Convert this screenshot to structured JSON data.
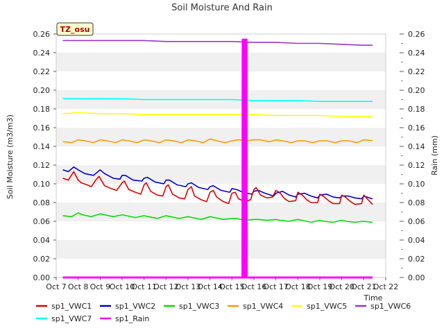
{
  "chart_data": {
    "type": "line",
    "title": "Soil Moisture And Rain",
    "site_label": "TZ_osu",
    "xlabel": "Time",
    "ylabel": "Soil Moisture (m3/m3)",
    "ylabel_right": "Rain (mm)",
    "x_ticks": [
      "Oct 7",
      "Oct 8",
      "Oct 9",
      "Oct 10",
      "Oct 11",
      "Oct 12",
      "Oct 13",
      "Oct 14",
      "Oct 15",
      "Oct 16",
      "Oct 17",
      "Oct 18",
      "Oct 19",
      "Oct 20",
      "Oct 21",
      "Oct 22"
    ],
    "xlim_days": [
      7,
      22
    ],
    "ylim": [
      0,
      0.26
    ],
    "y_ticks": [
      "0.00",
      "0.02",
      "0.04",
      "0.06",
      "0.08",
      "0.10",
      "0.12",
      "0.14",
      "0.16",
      "0.18",
      "0.20",
      "0.22",
      "0.24",
      "0.26"
    ],
    "ylim_right": [
      0,
      0.26
    ],
    "y_ticks_right": [
      "0.00",
      "0.02",
      "0.04",
      "0.06",
      "0.08",
      "0.10",
      "0.12",
      "0.14",
      "0.16",
      "0.18",
      "0.20",
      "0.22",
      "0.24",
      "0.26"
    ],
    "grid": "horizontal alternating bands",
    "legend_placement": "bottom",
    "series": [
      {
        "name": "sp1_VWC1",
        "color": "#dd0000",
        "axis": "left",
        "x": [
          7.3,
          7.55,
          7.8,
          8.0,
          8.15,
          8.4,
          8.6,
          8.8,
          8.95,
          9.2,
          9.5,
          9.75,
          10.0,
          10.1,
          10.3,
          10.6,
          10.85,
          11.0,
          11.1,
          11.3,
          11.6,
          11.85,
          12.0,
          12.1,
          12.3,
          12.6,
          12.85,
          13.0,
          13.15,
          13.3,
          13.6,
          13.85,
          14.0,
          14.15,
          14.3,
          14.6,
          14.85,
          15.0,
          15.15,
          15.3,
          15.6,
          15.85,
          16.0,
          16.1,
          16.3,
          16.6,
          16.85,
          17.0,
          17.2,
          17.4,
          17.6,
          17.9,
          18.0,
          18.2,
          18.4,
          18.6,
          18.9,
          19.0,
          19.15,
          19.4,
          19.6,
          19.9,
          20.0,
          20.15,
          20.4,
          20.6,
          20.9,
          21.0,
          21.2,
          21.4
        ],
        "y": [
          0.106,
          0.104,
          0.113,
          0.104,
          0.101,
          0.099,
          0.097,
          0.104,
          0.108,
          0.098,
          0.095,
          0.093,
          0.101,
          0.103,
          0.094,
          0.091,
          0.089,
          0.099,
          0.101,
          0.092,
          0.088,
          0.087,
          0.097,
          0.099,
          0.089,
          0.085,
          0.084,
          0.094,
          0.097,
          0.087,
          0.083,
          0.081,
          0.091,
          0.093,
          0.086,
          0.081,
          0.079,
          0.09,
          0.091,
          0.084,
          0.081,
          0.083,
          0.094,
          0.096,
          0.088,
          0.085,
          0.086,
          0.093,
          0.09,
          0.084,
          0.081,
          0.082,
          0.091,
          0.088,
          0.083,
          0.08,
          0.08,
          0.089,
          0.087,
          0.082,
          0.079,
          0.079,
          0.088,
          0.086,
          0.081,
          0.078,
          0.079,
          0.088,
          0.083,
          0.078
        ]
      },
      {
        "name": "sp1_VWC2",
        "color": "#0000cc",
        "axis": "left",
        "x": [
          7.3,
          7.55,
          7.8,
          8.0,
          8.3,
          8.7,
          9.0,
          9.2,
          9.6,
          9.9,
          10.0,
          10.15,
          10.5,
          10.9,
          11.0,
          11.15,
          11.5,
          11.9,
          12.0,
          12.15,
          12.5,
          12.9,
          13.0,
          13.15,
          13.5,
          13.9,
          14.0,
          14.15,
          14.5,
          14.9,
          15.0,
          15.2,
          15.5,
          15.9,
          16.0,
          16.2,
          16.5,
          16.9,
          17.0,
          17.3,
          17.6,
          17.9,
          18.0,
          18.3,
          18.6,
          18.9,
          19.0,
          19.3,
          19.6,
          19.9,
          20.0,
          20.3,
          20.6,
          20.9,
          21.0,
          21.4
        ],
        "y": [
          0.115,
          0.113,
          0.118,
          0.115,
          0.111,
          0.109,
          0.115,
          0.111,
          0.106,
          0.105,
          0.109,
          0.109,
          0.104,
          0.103,
          0.106,
          0.107,
          0.102,
          0.1,
          0.104,
          0.104,
          0.099,
          0.097,
          0.1,
          0.101,
          0.096,
          0.094,
          0.097,
          0.098,
          0.093,
          0.091,
          0.095,
          0.094,
          0.091,
          0.089,
          0.092,
          0.093,
          0.09,
          0.087,
          0.09,
          0.092,
          0.088,
          0.086,
          0.089,
          0.09,
          0.087,
          0.085,
          0.088,
          0.089,
          0.086,
          0.085,
          0.087,
          0.087,
          0.085,
          0.084,
          0.087,
          0.084
        ]
      },
      {
        "name": "sp1_VWC3",
        "color": "#00dd00",
        "axis": "left",
        "x": [
          7.3,
          7.7,
          8.0,
          8.2,
          8.6,
          9.0,
          9.2,
          9.6,
          10.0,
          10.2,
          10.6,
          11.0,
          11.2,
          11.6,
          12.0,
          12.2,
          12.6,
          13.0,
          13.2,
          13.6,
          14.0,
          14.2,
          14.6,
          15.0,
          15.2,
          15.6,
          16.0,
          16.2,
          16.6,
          17.0,
          17.2,
          17.6,
          18.0,
          18.2,
          18.6,
          19.0,
          19.2,
          19.6,
          20.0,
          20.2,
          20.6,
          21.0,
          21.4
        ],
        "y": [
          0.066,
          0.065,
          0.069,
          0.067,
          0.065,
          0.068,
          0.067,
          0.065,
          0.067,
          0.066,
          0.064,
          0.066,
          0.065,
          0.063,
          0.066,
          0.065,
          0.063,
          0.065,
          0.064,
          0.062,
          0.065,
          0.064,
          0.062,
          0.063,
          0.063,
          0.061,
          0.062,
          0.062,
          0.061,
          0.062,
          0.061,
          0.06,
          0.062,
          0.061,
          0.059,
          0.061,
          0.06,
          0.059,
          0.061,
          0.06,
          0.059,
          0.06,
          0.059
        ]
      },
      {
        "name": "sp1_VWC4",
        "color": "#ff9900",
        "axis": "left",
        "x": [
          7.3,
          7.7,
          8.0,
          8.3,
          8.7,
          9.0,
          9.3,
          9.7,
          10.0,
          10.3,
          10.7,
          11.0,
          11.3,
          11.7,
          12.0,
          12.3,
          12.7,
          13.0,
          13.3,
          13.7,
          14.0,
          14.3,
          14.7,
          15.0,
          15.3,
          15.7,
          16.0,
          16.3,
          16.7,
          17.0,
          17.3,
          17.7,
          18.0,
          18.3,
          18.7,
          19.0,
          19.3,
          19.7,
          20.0,
          20.3,
          20.7,
          21.0,
          21.4
        ],
        "y": [
          0.145,
          0.144,
          0.147,
          0.146,
          0.144,
          0.147,
          0.146,
          0.144,
          0.147,
          0.146,
          0.144,
          0.147,
          0.146,
          0.144,
          0.147,
          0.146,
          0.144,
          0.147,
          0.146,
          0.144,
          0.148,
          0.146,
          0.144,
          0.146,
          0.147,
          0.146,
          0.147,
          0.147,
          0.145,
          0.147,
          0.146,
          0.144,
          0.146,
          0.146,
          0.144,
          0.146,
          0.146,
          0.144,
          0.146,
          0.146,
          0.144,
          0.147,
          0.146
        ]
      },
      {
        "name": "sp1_VWC5",
        "color": "#ffff00",
        "axis": "left",
        "x": [
          7.3,
          8.0,
          9.0,
          10.0,
          11.0,
          12.0,
          13.0,
          14.0,
          15.0,
          16.0,
          17.0,
          18.0,
          19.0,
          20.0,
          20.5,
          21.0,
          21.4
        ],
        "y": [
          0.175,
          0.176,
          0.175,
          0.175,
          0.174,
          0.174,
          0.174,
          0.174,
          0.174,
          0.174,
          0.173,
          0.173,
          0.173,
          0.172,
          0.172,
          0.172,
          0.172
        ]
      },
      {
        "name": "sp1_VWC6",
        "color": "#9933cc",
        "axis": "left",
        "x": [
          7.3,
          8.0,
          9.0,
          10.0,
          11.0,
          12.0,
          13.0,
          14.0,
          15.0,
          16.0,
          17.0,
          18.0,
          19.0,
          20.0,
          21.0,
          21.4
        ],
        "y": [
          0.253,
          0.253,
          0.253,
          0.253,
          0.253,
          0.252,
          0.252,
          0.252,
          0.252,
          0.251,
          0.251,
          0.25,
          0.25,
          0.249,
          0.248,
          0.248
        ]
      },
      {
        "name": "sp1_VWC7",
        "color": "#00ffff",
        "axis": "left",
        "x": [
          7.3,
          8.0,
          9.0,
          10.0,
          11.0,
          12.0,
          13.0,
          14.0,
          15.0,
          16.0,
          17.0,
          18.0,
          19.0,
          20.0,
          21.0,
          21.4
        ],
        "y": [
          0.191,
          0.191,
          0.191,
          0.191,
          0.19,
          0.19,
          0.19,
          0.19,
          0.19,
          0.189,
          0.189,
          0.189,
          0.188,
          0.188,
          0.188,
          0.188
        ]
      },
      {
        "name": "sp1_Rain",
        "color": "#ff00ff",
        "axis": "right",
        "x": [
          7.3,
          15.48,
          15.49,
          15.52,
          15.55,
          15.56,
          15.62,
          15.63,
          15.66,
          15.67,
          21.4
        ],
        "y": [
          0,
          0,
          0.254,
          0.254,
          0.254,
          0,
          0,
          0.254,
          0.254,
          0,
          0
        ]
      }
    ]
  }
}
